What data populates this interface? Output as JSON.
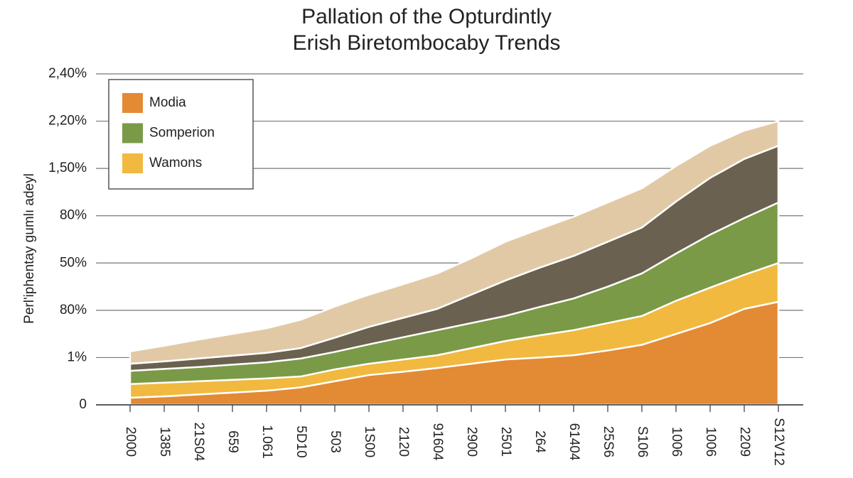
{
  "chart_data": {
    "type": "stacked_area",
    "title": [
      "Pallation of the Opturdintly",
      "Erish Biretombocaby Trends"
    ],
    "y_label": "Perl'iphentay gumlı adeyl",
    "categories": [
      "2000",
      "1385",
      "21S04",
      "659",
      "1.061",
      "5D10",
      "503",
      "1S00",
      "2120",
      "91604",
      "2900",
      "2501",
      "264",
      "61404",
      "25S6",
      "S106",
      "1006",
      "1006",
      "2209",
      "S12V12"
    ],
    "series": [
      {
        "name": "Modia",
        "color": "#e38a35",
        "values": [
          0.15,
          0.18,
          0.22,
          0.26,
          0.3,
          0.37,
          0.5,
          0.63,
          0.7,
          0.78,
          0.87,
          0.96,
          1.0,
          1.05,
          1.15,
          1.27,
          1.5,
          1.73,
          2.03,
          2.18
        ]
      },
      {
        "name": "Wamons",
        "color": "#f1b93f",
        "values": [
          0.29,
          0.29,
          0.28,
          0.27,
          0.26,
          0.23,
          0.25,
          0.24,
          0.26,
          0.27,
          0.33,
          0.39,
          0.47,
          0.53,
          0.58,
          0.61,
          0.7,
          0.75,
          0.72,
          0.82
        ]
      },
      {
        "name": "Somperion",
        "color": "#7a9a48",
        "values": [
          0.28,
          0.29,
          0.3,
          0.32,
          0.34,
          0.38,
          0.37,
          0.41,
          0.47,
          0.53,
          0.53,
          0.53,
          0.6,
          0.67,
          0.77,
          0.9,
          1.0,
          1.12,
          1.2,
          1.28
        ]
      },
      {
        "color": "#6b6150",
        "values": [
          0.15,
          0.16,
          0.18,
          0.19,
          0.2,
          0.22,
          0.3,
          0.37,
          0.41,
          0.45,
          0.6,
          0.75,
          0.83,
          0.9,
          0.95,
          0.97,
          1.1,
          1.2,
          1.25,
          1.2
        ]
      },
      {
        "color": "#e2c9a6",
        "values": [
          0.26,
          0.33,
          0.4,
          0.46,
          0.52,
          0.6,
          0.66,
          0.68,
          0.71,
          0.75,
          0.77,
          0.82,
          0.82,
          0.83,
          0.83,
          0.83,
          0.75,
          0.68,
          0.6,
          0.52
        ]
      }
    ],
    "legend_order": [
      0,
      2,
      1
    ],
    "ylim": [
      0,
      7
    ],
    "yticks": [
      0,
      {
        "value": 1,
        "label": "1%"
      },
      {
        "value": 2,
        "label": "80%"
      },
      {
        "value": 3,
        "label": "50%"
      },
      {
        "value": 4,
        "label": "80%"
      },
      {
        "value": 5,
        "label": "1,50%"
      },
      {
        "value": 6,
        "label": "2,20%"
      },
      {
        "value": 7,
        "label": "2,40%"
      }
    ],
    "grid": true
  }
}
